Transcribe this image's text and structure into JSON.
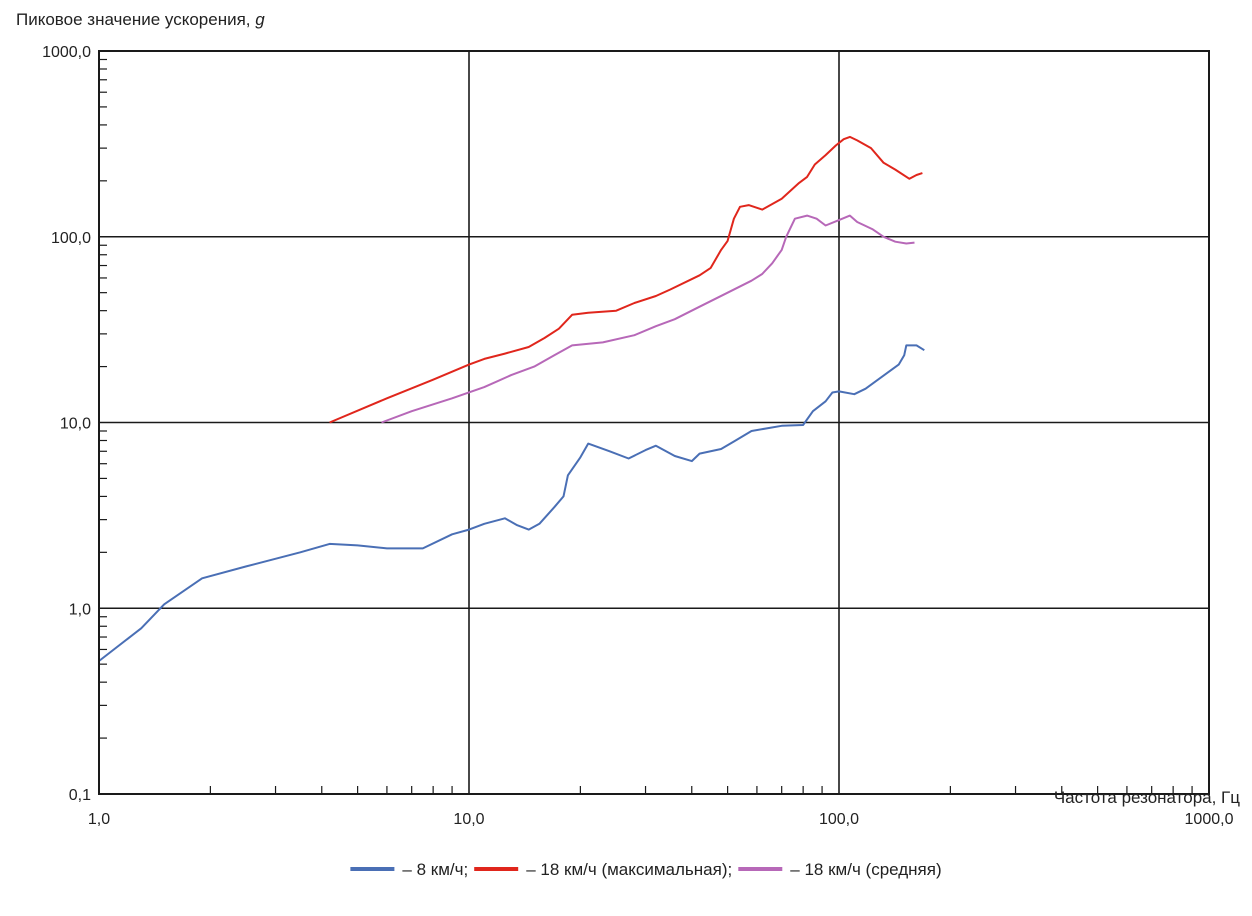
{
  "chart_data": {
    "type": "line",
    "ylabel": "Пиковое значение ускорения,",
    "ylabel_italic": "g",
    "xlabel": "Частота резонатора, Гц",
    "x_scale": "log",
    "y_scale": "log",
    "xlim": [
      1,
      1000
    ],
    "ylim": [
      0.1,
      1000
    ],
    "x_ticks": [
      1,
      10,
      100,
      1000
    ],
    "y_ticks": [
      0.1,
      1,
      10,
      100,
      1000
    ],
    "x_tick_labels": [
      "1,0",
      "10,0",
      "100,0",
      "1000,0"
    ],
    "y_tick_labels": [
      "0,1",
      "1,0",
      "10,0",
      "100,0",
      "1000,0"
    ],
    "grid": true,
    "legend_position": "bottom",
    "series": [
      {
        "name": "– 8 км/ч;",
        "color": "#4a6fb5",
        "points": [
          [
            1.0,
            0.52
          ],
          [
            1.3,
            0.78
          ],
          [
            1.5,
            1.05
          ],
          [
            1.9,
            1.45
          ],
          [
            2.5,
            1.68
          ],
          [
            3.5,
            2.0
          ],
          [
            4.2,
            2.22
          ],
          [
            5,
            2.18
          ],
          [
            6,
            2.1
          ],
          [
            7.5,
            2.1
          ],
          [
            9,
            2.5
          ],
          [
            10,
            2.65
          ],
          [
            11,
            2.85
          ],
          [
            12.5,
            3.05
          ],
          [
            13.5,
            2.8
          ],
          [
            14.5,
            2.65
          ],
          [
            15.5,
            2.85
          ],
          [
            17,
            3.5
          ],
          [
            18,
            4.0
          ],
          [
            18.5,
            5.2
          ],
          [
            20,
            6.5
          ],
          [
            21,
            7.7
          ],
          [
            24,
            7.0
          ],
          [
            27,
            6.4
          ],
          [
            30,
            7.1
          ],
          [
            32,
            7.5
          ],
          [
            36,
            6.6
          ],
          [
            40,
            6.2
          ],
          [
            42,
            6.8
          ],
          [
            48,
            7.2
          ],
          [
            52,
            7.9
          ],
          [
            58,
            9.0
          ],
          [
            70,
            9.6
          ],
          [
            80,
            9.7
          ],
          [
            85,
            11.5
          ],
          [
            92,
            13.0
          ],
          [
            96,
            14.5
          ],
          [
            100,
            14.7
          ],
          [
            110,
            14.2
          ],
          [
            118,
            15.2
          ],
          [
            135,
            18.5
          ],
          [
            145,
            20.5
          ],
          [
            150,
            23.0
          ],
          [
            152,
            26.0
          ],
          [
            162,
            26.0
          ],
          [
            170,
            24.5
          ]
        ]
      },
      {
        "name": "– 18 км/ч (максимальная);",
        "color": "#e0261c",
        "points": [
          [
            4.2,
            10.0
          ],
          [
            6,
            13.5
          ],
          [
            8,
            17.0
          ],
          [
            10,
            20.5
          ],
          [
            11,
            22.0
          ],
          [
            12.5,
            23.5
          ],
          [
            14.5,
            25.5
          ],
          [
            16,
            28.5
          ],
          [
            17.5,
            32.0
          ],
          [
            19,
            38.0
          ],
          [
            21,
            39.0
          ],
          [
            25,
            40.0
          ],
          [
            28,
            44.0
          ],
          [
            32,
            48.0
          ],
          [
            35,
            52.0
          ],
          [
            42,
            62.0
          ],
          [
            45,
            68.0
          ],
          [
            48,
            85.0
          ],
          [
            50,
            95.0
          ],
          [
            52,
            125.0
          ],
          [
            54,
            145.0
          ],
          [
            57,
            148.0
          ],
          [
            62,
            140.0
          ],
          [
            70,
            160.0
          ],
          [
            78,
            195.0
          ],
          [
            82,
            210.0
          ],
          [
            86,
            245.0
          ],
          [
            92,
            275.0
          ],
          [
            98,
            310.0
          ],
          [
            103,
            335.0
          ],
          [
            107,
            345.0
          ],
          [
            112,
            330.0
          ],
          [
            122,
            300.0
          ],
          [
            132,
            250.0
          ],
          [
            142,
            230.0
          ],
          [
            155,
            205.0
          ],
          [
            162,
            215.0
          ],
          [
            168,
            220.0
          ]
        ]
      },
      {
        "name": "– 18 км/ч (средняя)",
        "color": "#b768b8",
        "points": [
          [
            5.8,
            10.0
          ],
          [
            7,
            11.5
          ],
          [
            9,
            13.5
          ],
          [
            11,
            15.5
          ],
          [
            13,
            18.0
          ],
          [
            15,
            20.0
          ],
          [
            17,
            23.0
          ],
          [
            19,
            26.0
          ],
          [
            23,
            27.0
          ],
          [
            28,
            29.5
          ],
          [
            32,
            33.0
          ],
          [
            36,
            36.0
          ],
          [
            42,
            42.0
          ],
          [
            50,
            50.0
          ],
          [
            58,
            58.0
          ],
          [
            62,
            63.0
          ],
          [
            66,
            72.0
          ],
          [
            70,
            85.0
          ],
          [
            72,
            100.0
          ],
          [
            76,
            125.0
          ],
          [
            82,
            130.0
          ],
          [
            87,
            125.0
          ],
          [
            92,
            115.0
          ],
          [
            100,
            123.0
          ],
          [
            107,
            130.0
          ],
          [
            112,
            120.0
          ],
          [
            123,
            110.0
          ],
          [
            132,
            100.0
          ],
          [
            142,
            94.0
          ],
          [
            152,
            92.0
          ],
          [
            160,
            93.0
          ]
        ]
      }
    ]
  }
}
